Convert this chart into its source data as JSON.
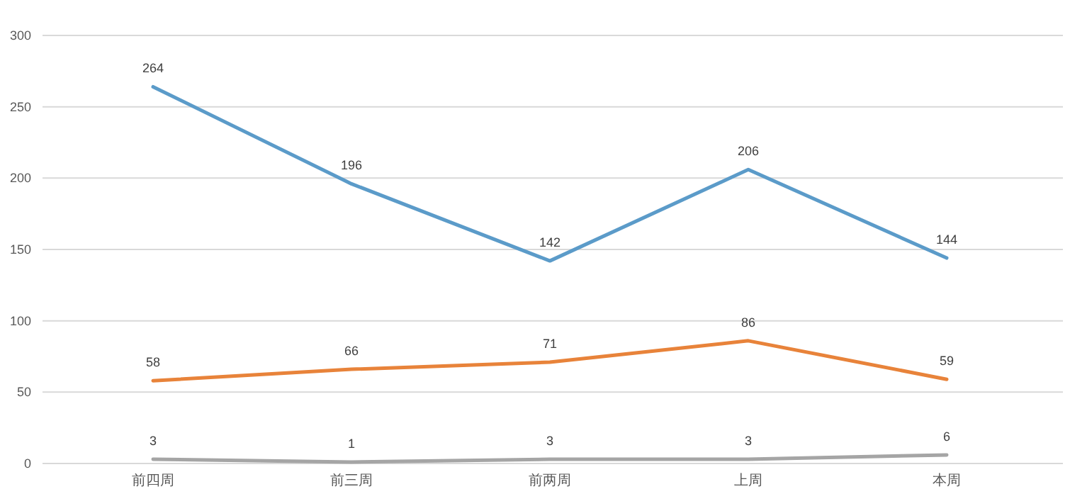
{
  "chart_data": {
    "type": "line",
    "categories": [
      "前四周",
      "前三周",
      "前两周",
      "上周",
      "本周"
    ],
    "series": [
      {
        "color": "#5b9bc9",
        "values": [
          264,
          196,
          142,
          206,
          144
        ]
      },
      {
        "color": "#e8833a",
        "values": [
          58,
          66,
          71,
          86,
          59
        ]
      },
      {
        "color": "#a5a5a5",
        "values": [
          3,
          1,
          3,
          3,
          6
        ]
      }
    ],
    "ylim": [
      0,
      300
    ],
    "yticks": [
      0,
      50,
      100,
      150,
      200,
      250,
      300
    ],
    "grid": "y",
    "data_labels": true,
    "marker": "none",
    "line_style": "solid"
  }
}
